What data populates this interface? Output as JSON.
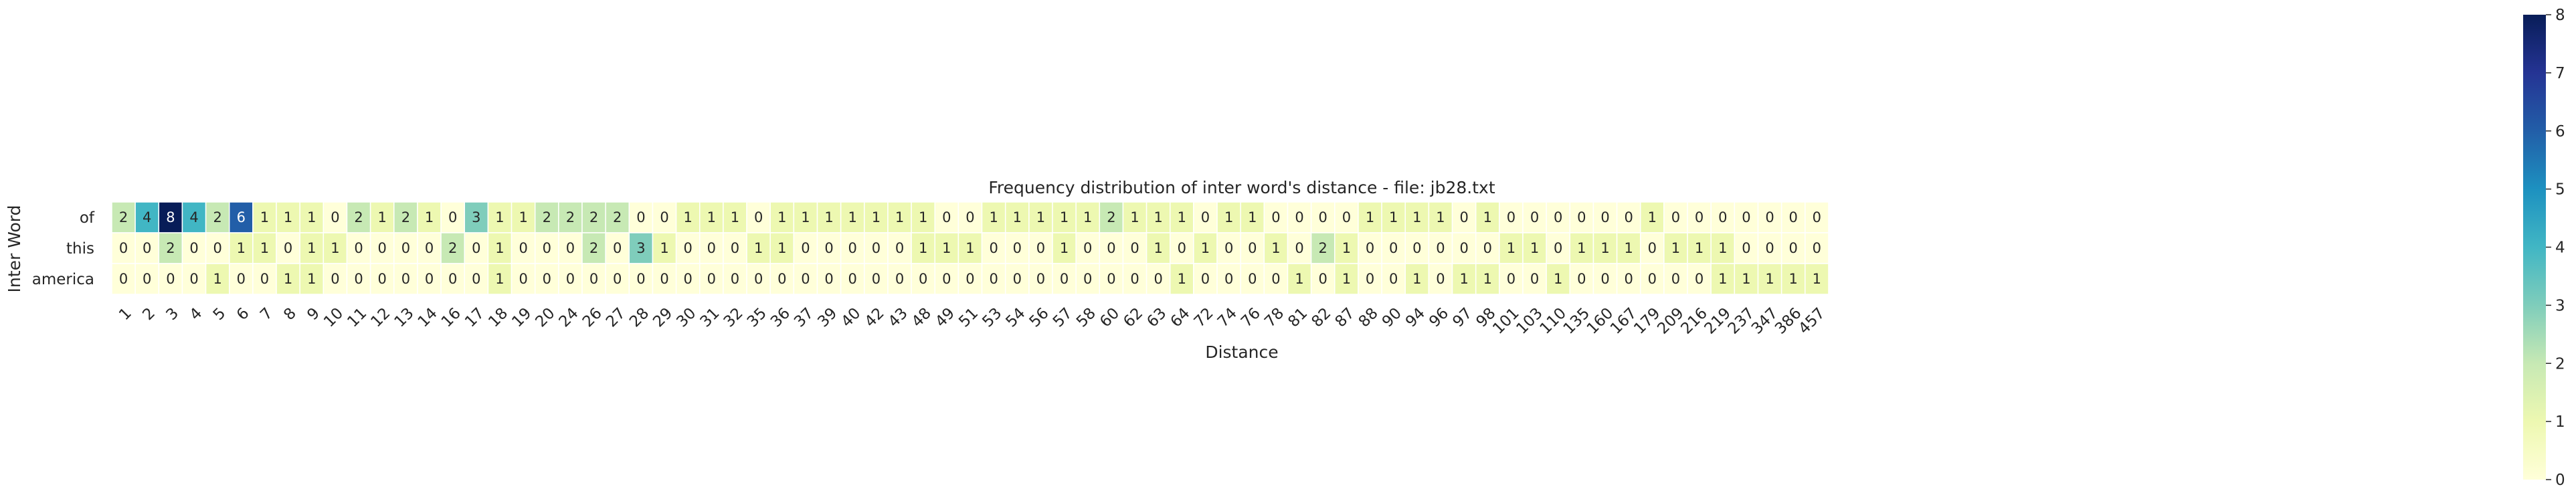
{
  "chart_data": {
    "type": "heatmap",
    "title": "Frequency distribution of inter word's distance - file: jb28.txt",
    "xlabel": "Distance",
    "ylabel": "Inter Word",
    "rows": [
      "of",
      "this",
      "america"
    ],
    "columns": [
      "1",
      "2",
      "3",
      "4",
      "5",
      "6",
      "7",
      "8",
      "9",
      "10",
      "11",
      "12",
      "13",
      "14",
      "16",
      "17",
      "18",
      "19",
      "20",
      "24",
      "26",
      "27",
      "28",
      "29",
      "30",
      "31",
      "32",
      "35",
      "36",
      "37",
      "39",
      "40",
      "42",
      "43",
      "48",
      "49",
      "51",
      "53",
      "54",
      "56",
      "57",
      "58",
      "60",
      "62",
      "63",
      "64",
      "72",
      "74",
      "76",
      "78",
      "81",
      "82",
      "87",
      "88",
      "90",
      "94",
      "96",
      "97",
      "98",
      "101",
      "103",
      "110",
      "135",
      "160",
      "167",
      "179",
      "209",
      "216",
      "219",
      "237",
      "347",
      "386",
      "457"
    ],
    "values": [
      [
        2,
        4,
        8,
        4,
        2,
        6,
        1,
        1,
        1,
        0,
        2,
        1,
        2,
        1,
        0,
        3,
        1,
        1,
        2,
        2,
        2,
        2,
        0,
        0,
        1,
        1,
        1,
        0,
        1,
        1,
        1,
        1,
        1,
        1,
        1,
        0,
        0,
        1,
        1,
        1,
        1,
        1,
        2,
        1,
        1,
        1,
        0,
        1,
        1,
        0,
        0,
        0,
        0,
        1,
        1,
        1,
        1,
        0,
        1,
        0,
        0,
        0,
        0,
        0,
        0,
        1,
        0,
        0,
        0,
        0,
        0,
        0,
        0
      ],
      [
        0,
        0,
        2,
        0,
        0,
        1,
        1,
        0,
        1,
        1,
        0,
        0,
        0,
        0,
        2,
        0,
        1,
        0,
        0,
        0,
        2,
        0,
        3,
        1,
        0,
        0,
        0,
        1,
        1,
        0,
        0,
        0,
        0,
        0,
        1,
        1,
        1,
        0,
        0,
        0,
        1,
        0,
        0,
        0,
        1,
        0,
        1,
        0,
        0,
        1,
        0,
        2,
        1,
        0,
        0,
        0,
        0,
        0,
        0,
        1,
        1,
        0,
        1,
        1,
        1,
        0,
        1,
        1,
        1,
        0,
        0,
        0,
        0
      ],
      [
        0,
        0,
        0,
        0,
        1,
        0,
        0,
        1,
        1,
        0,
        0,
        0,
        0,
        0,
        0,
        0,
        1,
        0,
        0,
        0,
        0,
        0,
        0,
        0,
        0,
        0,
        0,
        0,
        0,
        0,
        0,
        0,
        0,
        0,
        0,
        0,
        0,
        0,
        0,
        0,
        0,
        0,
        0,
        0,
        0,
        1,
        0,
        0,
        0,
        0,
        1,
        0,
        1,
        0,
        0,
        1,
        0,
        1,
        1,
        0,
        0,
        1,
        0,
        0,
        0,
        0,
        0,
        0,
        1,
        1,
        1,
        1,
        1
      ]
    ],
    "colorbar": {
      "min": 0,
      "max": 8,
      "ticks": [
        0,
        1,
        2,
        3,
        4,
        5,
        6,
        7,
        8
      ]
    },
    "colormap": "YlGnBu",
    "grid": false,
    "legend": "colorbar-right"
  }
}
